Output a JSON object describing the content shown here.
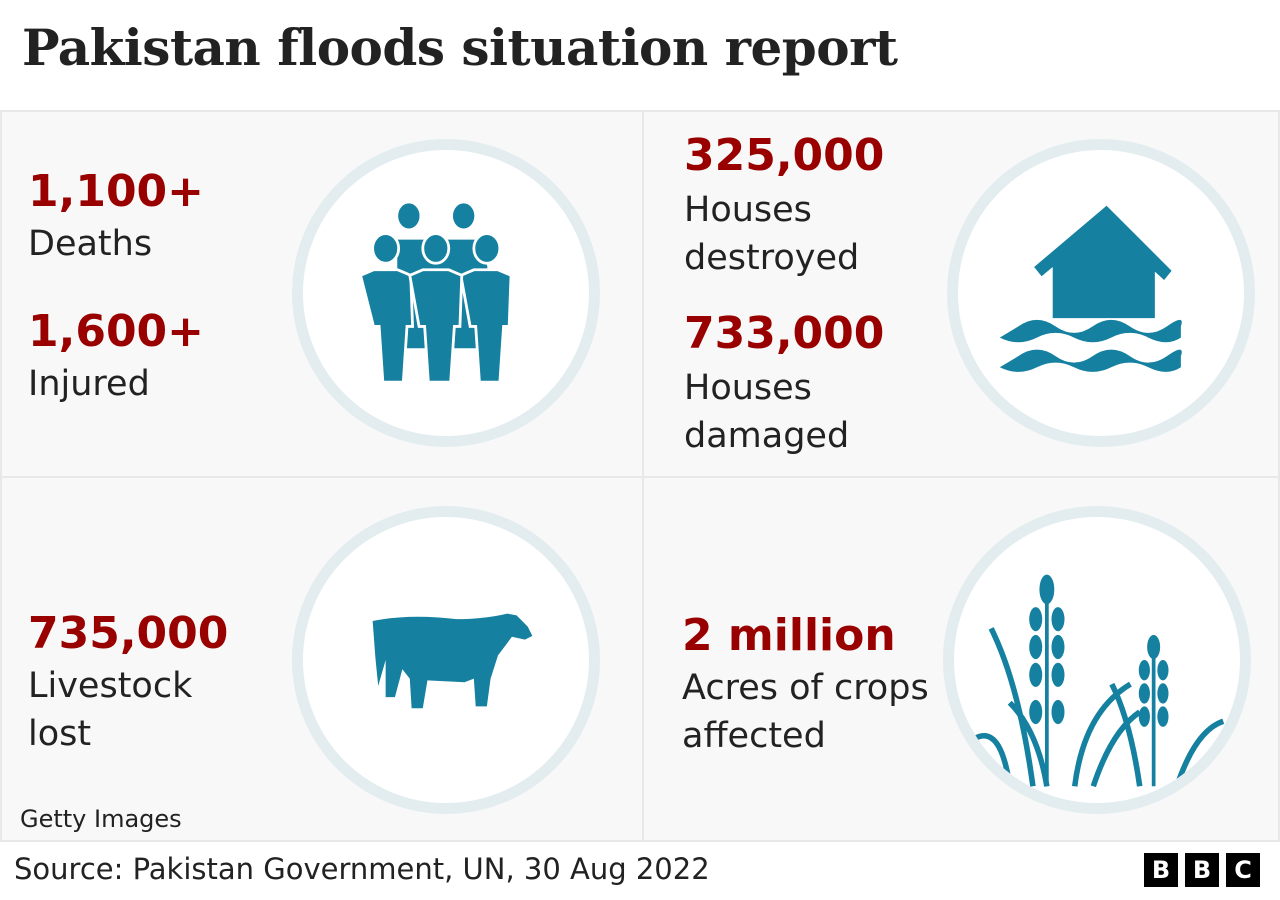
{
  "title": "Pakistan floods situation report",
  "panels": [
    {
      "stats": [
        {
          "value": "1,100+",
          "label": "Deaths"
        },
        {
          "value": "1,600+",
          "label": "Injured"
        }
      ],
      "icon": "people-icon"
    },
    {
      "stats": [
        {
          "value": "325,000",
          "label": "Houses destroyed"
        },
        {
          "value": "733,000",
          "label": "Houses damaged"
        }
      ],
      "icon": "flooded-house-icon"
    },
    {
      "stats": [
        {
          "value": "735,000",
          "label": "Livestock lost"
        }
      ],
      "icon": "cow-icon"
    },
    {
      "stats": [
        {
          "value": "2 million",
          "label": "Acres of crops affected"
        }
      ],
      "icon": "crops-icon"
    }
  ],
  "credit": "Getty Images",
  "source": "Source: Pakistan Government, UN, 30 Aug 2022",
  "logo": [
    "B",
    "B",
    "C"
  ],
  "colors": {
    "number": "#990000",
    "icon": "#1580a0",
    "ring": "#e3edf0",
    "panel": "#f8f8f8"
  }
}
